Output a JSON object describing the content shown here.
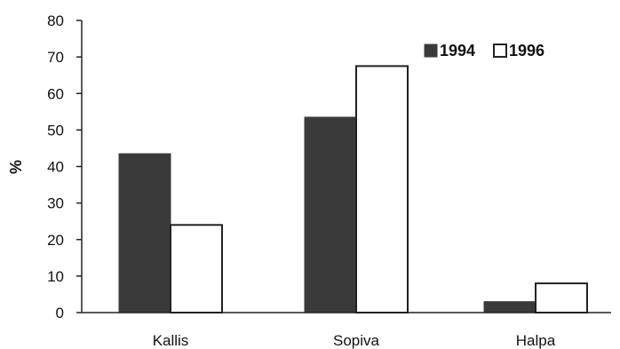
{
  "chart_data": {
    "type": "bar",
    "categories": [
      "Kallis",
      "Sopiva",
      "Halpa"
    ],
    "series": [
      {
        "name": "1994",
        "values": [
          43.5,
          53.5,
          3
        ],
        "color": "#3a3a3a",
        "style": "filled"
      },
      {
        "name": "1996",
        "values": [
          24,
          67.5,
          8
        ],
        "color": "#ffffff",
        "style": "outline"
      }
    ],
    "ylabel": "%",
    "xlabel": "",
    "ylim": [
      0,
      80
    ],
    "yticks": [
      "0",
      "10",
      "20",
      "30",
      "40",
      "50",
      "60",
      "70",
      "80"
    ],
    "grid": false,
    "legend": "top-right"
  }
}
